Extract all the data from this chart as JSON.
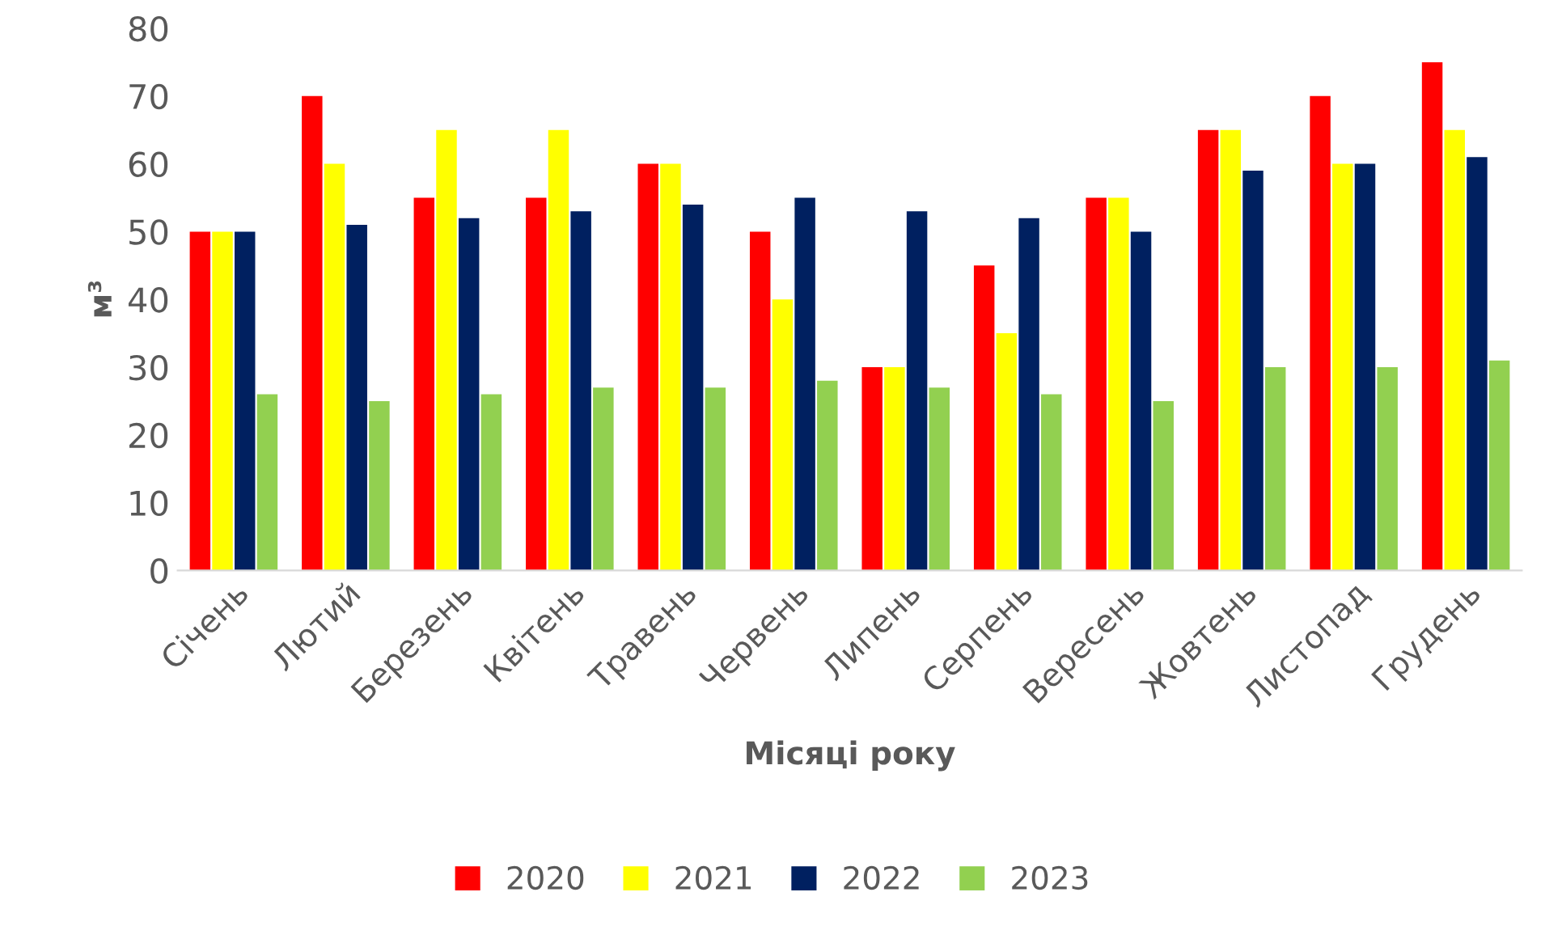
{
  "chart_data": {
    "type": "bar",
    "xlabel": "Місяці року",
    "ylabel": "м³",
    "categories": [
      "Січень",
      "Лютий",
      "Березень",
      "Квітень",
      "Травень",
      "Червень",
      "Липень",
      "Серпень",
      "Вересень",
      "Жовтень",
      "Листопад",
      "Грудень"
    ],
    "series": [
      {
        "name": "2020",
        "color": "#ff0000",
        "values": [
          50,
          70,
          55,
          55,
          60,
          50,
          30,
          45,
          55,
          65,
          70,
          75
        ]
      },
      {
        "name": "2021",
        "color": "#ffff00",
        "values": [
          50,
          60,
          65,
          65,
          60,
          40,
          30,
          35,
          55,
          65,
          60,
          65
        ]
      },
      {
        "name": "2022",
        "color": "#002060",
        "values": [
          50,
          51,
          52,
          53,
          54,
          55,
          53,
          52,
          50,
          59,
          60,
          61
        ]
      },
      {
        "name": "2023",
        "color": "#92d050",
        "values": [
          26,
          25,
          26,
          27,
          27,
          28,
          27,
          26,
          25,
          30,
          30,
          31
        ]
      }
    ],
    "ylim": [
      0,
      80
    ],
    "yticks": [
      0,
      10,
      20,
      30,
      40,
      50,
      60,
      70,
      80
    ],
    "grid": false,
    "legend": "bottom"
  }
}
